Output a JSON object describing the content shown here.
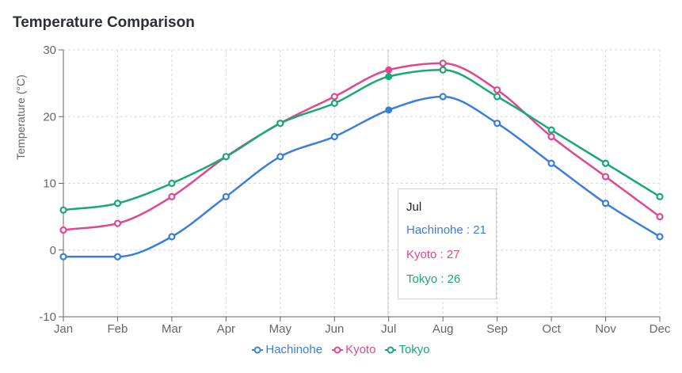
{
  "chart_data": {
    "type": "line",
    "title": "Temperature Comparison",
    "xlabel": "",
    "ylabel": "Temperature (°C)",
    "ylim": [
      -10,
      30
    ],
    "yticks": [
      -10,
      0,
      10,
      20,
      30
    ],
    "categories": [
      "Jan",
      "Feb",
      "Mar",
      "Apr",
      "May",
      "Jun",
      "Jul",
      "Aug",
      "Sep",
      "Oct",
      "Nov",
      "Dec"
    ],
    "series": [
      {
        "name": "Hachinohe",
        "color": "#3b7ddd",
        "values": [
          -1,
          -1,
          2,
          8,
          14,
          17,
          21,
          23,
          19,
          13,
          7,
          2
        ]
      },
      {
        "name": "Kyoto",
        "color": "#e0478f",
        "values": [
          3,
          4,
          8,
          14,
          19,
          23,
          27,
          28,
          24,
          17,
          11,
          5
        ]
      },
      {
        "name": "Tokyo",
        "color": "#18a878",
        "values": [
          6,
          7,
          10,
          14,
          19,
          22,
          26,
          27,
          23,
          18,
          13,
          8
        ]
      }
    ],
    "grid": true,
    "legend": "bottom-center"
  },
  "tooltip": {
    "label": "Jul",
    "rows": [
      {
        "text": "Hachinohe : 21",
        "color": "#3b7ddd"
      },
      {
        "text": "Kyoto : 27",
        "color": "#e0478f"
      },
      {
        "text": "Tokyo : 26",
        "color": "#18a878"
      }
    ]
  },
  "colors": {
    "axis": "#666666",
    "grid": "#d8d8d8",
    "cursor": "#cccccc"
  }
}
